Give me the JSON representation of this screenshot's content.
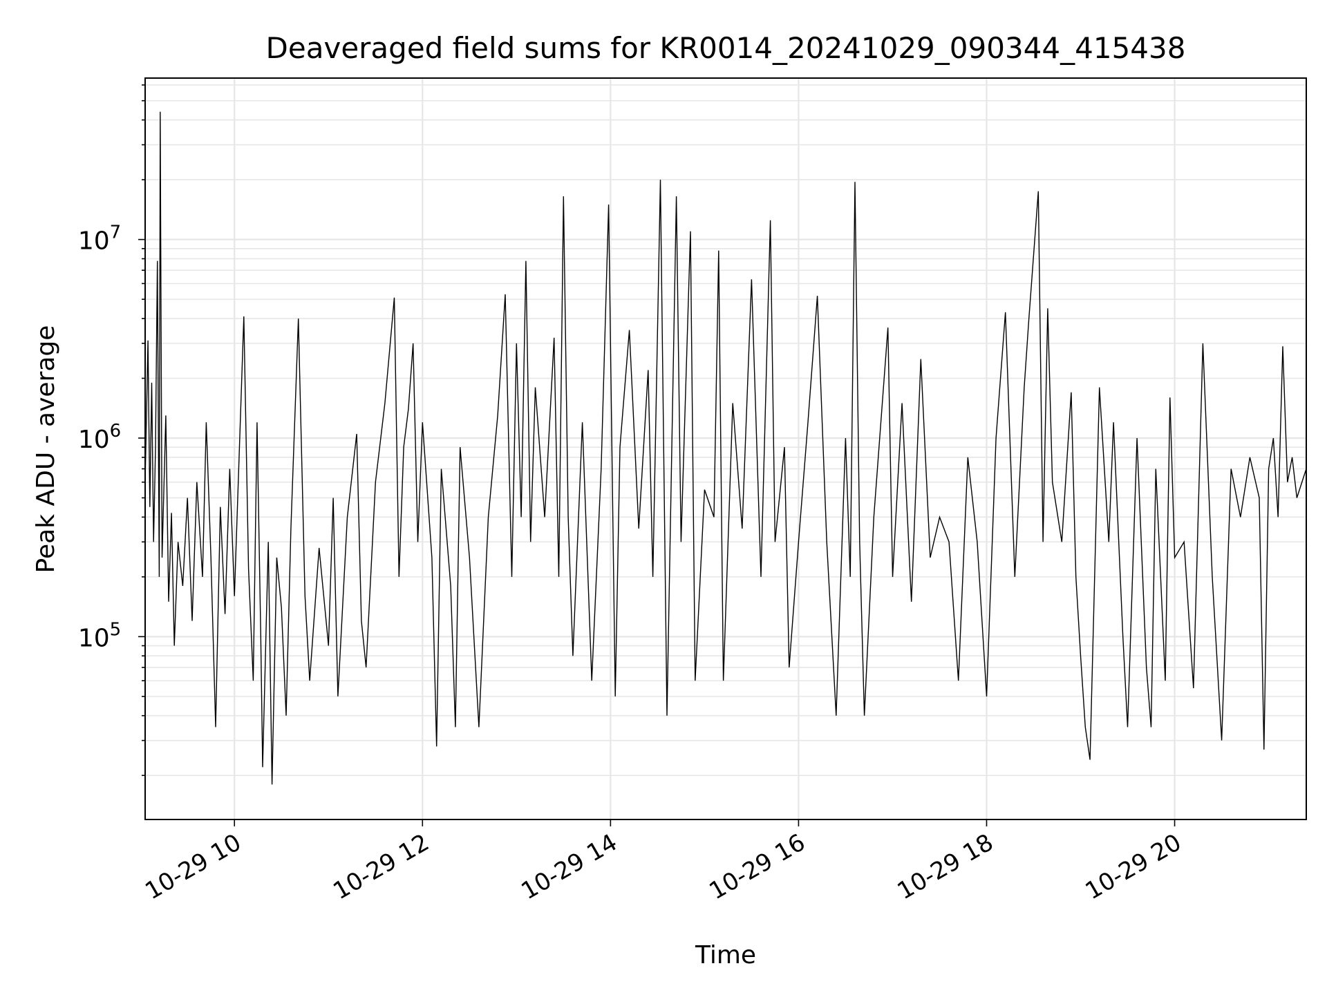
{
  "chart_data": {
    "type": "line",
    "title": "Deaveraged field sums for KR0014_20241029_090344_415438",
    "xlabel": "Time",
    "ylabel": "Peak ADU - average",
    "x_unit": "hours (2024-10-29)",
    "x_range": [
      9.05,
      21.4
    ],
    "x_ticks": [
      {
        "value": 10,
        "label": "10-29 10"
      },
      {
        "value": 12,
        "label": "10-29 12"
      },
      {
        "value": 14,
        "label": "10-29 14"
      },
      {
        "value": 16,
        "label": "10-29 16"
      },
      {
        "value": 18,
        "label": "10-29 18"
      },
      {
        "value": 20,
        "label": "10-29 20"
      }
    ],
    "y_scale": "log",
    "y_range": [
      12000,
      65000000
    ],
    "y_ticks": [
      {
        "value": 100000,
        "base": "10",
        "exp": "5"
      },
      {
        "value": 1000000,
        "base": "10",
        "exp": "6"
      },
      {
        "value": 10000000,
        "base": "10",
        "exp": "7"
      }
    ],
    "grid": true,
    "line_color": "#000000",
    "grid_color": "#e6e6e6",
    "series": [
      {
        "points": [
          [
            9.05,
            600000
          ],
          [
            9.08,
            3100000
          ],
          [
            9.1,
            450000
          ],
          [
            9.12,
            1900000
          ],
          [
            9.14,
            300000
          ],
          [
            9.16,
            900000
          ],
          [
            9.18,
            7800000
          ],
          [
            9.2,
            200000
          ],
          [
            9.21,
            44000000
          ],
          [
            9.23,
            250000
          ],
          [
            9.27,
            1300000
          ],
          [
            9.3,
            150000
          ],
          [
            9.33,
            420000
          ],
          [
            9.36,
            90000
          ],
          [
            9.4,
            300000
          ],
          [
            9.45,
            180000
          ],
          [
            9.5,
            500000
          ],
          [
            9.55,
            120000
          ],
          [
            9.6,
            600000
          ],
          [
            9.66,
            200000
          ],
          [
            9.7,
            1200000
          ],
          [
            9.75,
            250000
          ],
          [
            9.8,
            35000
          ],
          [
            9.85,
            450000
          ],
          [
            9.9,
            130000
          ],
          [
            9.95,
            700000
          ],
          [
            10.0,
            160000
          ],
          [
            10.1,
            4100000
          ],
          [
            10.15,
            220000
          ],
          [
            10.2,
            60000
          ],
          [
            10.24,
            1200000
          ],
          [
            10.28,
            100000
          ],
          [
            10.3,
            22000
          ],
          [
            10.36,
            300000
          ],
          [
            10.4,
            18000
          ],
          [
            10.45,
            250000
          ],
          [
            10.5,
            140000
          ],
          [
            10.55,
            40000
          ],
          [
            10.6,
            350000
          ],
          [
            10.68,
            4000000
          ],
          [
            10.75,
            160000
          ],
          [
            10.8,
            60000
          ],
          [
            10.9,
            280000
          ],
          [
            11.0,
            90000
          ],
          [
            11.05,
            500000
          ],
          [
            11.1,
            50000
          ],
          [
            11.2,
            400000
          ],
          [
            11.3,
            1050000
          ],
          [
            11.35,
            120000
          ],
          [
            11.4,
            70000
          ],
          [
            11.5,
            600000
          ],
          [
            11.6,
            1500000
          ],
          [
            11.7,
            5100000
          ],
          [
            11.75,
            200000
          ],
          [
            11.8,
            900000
          ],
          [
            11.85,
            1400000
          ],
          [
            11.9,
            3000000
          ],
          [
            11.95,
            300000
          ],
          [
            12.0,
            1200000
          ],
          [
            12.1,
            250000
          ],
          [
            12.15,
            28000
          ],
          [
            12.2,
            700000
          ],
          [
            12.3,
            180000
          ],
          [
            12.35,
            35000
          ],
          [
            12.4,
            900000
          ],
          [
            12.5,
            250000
          ],
          [
            12.6,
            35000
          ],
          [
            12.7,
            400000
          ],
          [
            12.8,
            1300000
          ],
          [
            12.88,
            5300000
          ],
          [
            12.95,
            200000
          ],
          [
            13.0,
            3000000
          ],
          [
            13.05,
            400000
          ],
          [
            13.1,
            7800000
          ],
          [
            13.15,
            300000
          ],
          [
            13.2,
            1800000
          ],
          [
            13.3,
            400000
          ],
          [
            13.4,
            3200000
          ],
          [
            13.45,
            200000
          ],
          [
            13.5,
            16500000
          ],
          [
            13.55,
            400000
          ],
          [
            13.6,
            80000
          ],
          [
            13.7,
            1200000
          ],
          [
            13.8,
            60000
          ],
          [
            13.9,
            700000
          ],
          [
            13.98,
            15000000
          ],
          [
            14.05,
            50000
          ],
          [
            14.1,
            900000
          ],
          [
            14.2,
            3500000
          ],
          [
            14.3,
            350000
          ],
          [
            14.4,
            2200000
          ],
          [
            14.45,
            200000
          ],
          [
            14.53,
            20000000
          ],
          [
            14.6,
            40000
          ],
          [
            14.7,
            16500000
          ],
          [
            14.75,
            300000
          ],
          [
            14.85,
            11000000
          ],
          [
            14.9,
            60000
          ],
          [
            15.0,
            550000
          ],
          [
            15.1,
            400000
          ],
          [
            15.15,
            8800000
          ],
          [
            15.2,
            60000
          ],
          [
            15.3,
            1500000
          ],
          [
            15.4,
            350000
          ],
          [
            15.5,
            6300000
          ],
          [
            15.6,
            200000
          ],
          [
            15.7,
            12500000
          ],
          [
            15.75,
            300000
          ],
          [
            15.85,
            900000
          ],
          [
            15.9,
            70000
          ],
          [
            16.0,
            300000
          ],
          [
            16.1,
            1200000
          ],
          [
            16.2,
            5200000
          ],
          [
            16.3,
            300000
          ],
          [
            16.4,
            40000
          ],
          [
            16.5,
            1000000
          ],
          [
            16.55,
            200000
          ],
          [
            16.6,
            19500000
          ],
          [
            16.65,
            300000
          ],
          [
            16.7,
            40000
          ],
          [
            16.8,
            400000
          ],
          [
            16.95,
            3600000
          ],
          [
            17.0,
            200000
          ],
          [
            17.1,
            1500000
          ],
          [
            17.2,
            150000
          ],
          [
            17.3,
            2500000
          ],
          [
            17.4,
            250000
          ],
          [
            17.5,
            400000
          ],
          [
            17.6,
            300000
          ],
          [
            17.7,
            60000
          ],
          [
            17.8,
            800000
          ],
          [
            17.9,
            300000
          ],
          [
            18.0,
            50000
          ],
          [
            18.1,
            1000000
          ],
          [
            18.2,
            4300000
          ],
          [
            18.3,
            200000
          ],
          [
            18.4,
            1800000
          ],
          [
            18.45,
            4000000
          ],
          [
            18.55,
            17500000
          ],
          [
            18.6,
            300000
          ],
          [
            18.65,
            4500000
          ],
          [
            18.7,
            600000
          ],
          [
            18.8,
            300000
          ],
          [
            18.9,
            1700000
          ],
          [
            18.95,
            200000
          ],
          [
            19.0,
            80000
          ],
          [
            19.05,
            35000
          ],
          [
            19.1,
            24000
          ],
          [
            19.2,
            1800000
          ],
          [
            19.3,
            300000
          ],
          [
            19.35,
            1200000
          ],
          [
            19.45,
            100000
          ],
          [
            19.5,
            35000
          ],
          [
            19.6,
            1000000
          ],
          [
            19.7,
            70000
          ],
          [
            19.75,
            35000
          ],
          [
            19.8,
            700000
          ],
          [
            19.9,
            60000
          ],
          [
            19.95,
            1600000
          ],
          [
            20.0,
            250000
          ],
          [
            20.1,
            300000
          ],
          [
            20.2,
            55000
          ],
          [
            20.3,
            3000000
          ],
          [
            20.4,
            200000
          ],
          [
            20.5,
            30000
          ],
          [
            20.6,
            700000
          ],
          [
            20.7,
            400000
          ],
          [
            20.8,
            800000
          ],
          [
            20.9,
            500000
          ],
          [
            20.95,
            27000
          ],
          [
            21.0,
            700000
          ],
          [
            21.05,
            1000000
          ],
          [
            21.1,
            400000
          ],
          [
            21.15,
            2900000
          ],
          [
            21.2,
            600000
          ],
          [
            21.25,
            800000
          ],
          [
            21.3,
            500000
          ],
          [
            21.4,
            700000
          ]
        ]
      }
    ]
  }
}
